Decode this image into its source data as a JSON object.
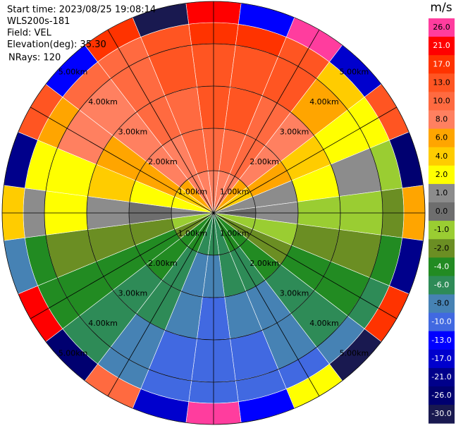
{
  "chart_data": {
    "type": "ppi",
    "header": [
      "Start time: 2023/08/25 19:08:14",
      "WLS200s-181",
      "Field: VEL",
      "Elevation(deg): 35.30",
      "NRays: 120"
    ],
    "unit": "m/s",
    "range_rings": [
      {
        "value": 1,
        "label": "1.00km"
      },
      {
        "value": 2,
        "label": "2.00km"
      },
      {
        "value": 3,
        "label": "3.00km"
      },
      {
        "value": 4,
        "label": "4.00km"
      },
      {
        "value": 5,
        "label": "5.00km"
      }
    ],
    "azimuth": [
      0,
      15,
      30,
      45,
      60,
      75,
      90,
      105,
      120,
      135,
      150,
      165,
      180,
      195,
      210,
      225,
      240,
      255,
      270,
      285,
      300,
      315,
      330,
      345
    ],
    "range_edges": [
      0,
      1,
      2,
      3,
      4,
      4.5,
      5
    ],
    "velocity": [
      [
        8,
        10,
        13,
        13,
        17,
        21
      ],
      [
        8,
        10,
        13,
        13,
        17,
        -13
      ],
      [
        8,
        10,
        10,
        13,
        13,
        26
      ],
      [
        6,
        8,
        8,
        6,
        4,
        -17
      ],
      [
        4,
        6,
        4,
        2,
        2,
        13
      ],
      [
        1,
        1,
        2,
        1,
        -1,
        -26
      ],
      [
        0,
        1,
        -1,
        -1,
        -2,
        6
      ],
      [
        -1,
        -1,
        -2,
        -2,
        -4,
        -21
      ],
      [
        -2,
        -2,
        -4,
        -4,
        -6,
        17
      ],
      [
        -4,
        -4,
        -6,
        -6,
        -8,
        -30
      ],
      [
        -4,
        -6,
        -8,
        -8,
        -10,
        2
      ],
      [
        -6,
        -6,
        -8,
        -10,
        -10,
        -13
      ],
      [
        -6,
        -8,
        -10,
        -10,
        -10,
        26
      ],
      [
        -6,
        -8,
        -8,
        -10,
        -10,
        -17
      ],
      [
        -4,
        -6,
        -6,
        -8,
        -8,
        10
      ],
      [
        -4,
        -4,
        -6,
        -6,
        -6,
        -26
      ],
      [
        -2,
        -4,
        -4,
        -4,
        -4,
        21
      ],
      [
        -1,
        -2,
        -2,
        -2,
        -4,
        -8
      ],
      [
        1,
        0,
        1,
        2,
        1,
        4
      ],
      [
        2,
        2,
        4,
        2,
        2,
        -21
      ],
      [
        4,
        6,
        6,
        8,
        6,
        13
      ],
      [
        6,
        8,
        8,
        8,
        10,
        -13
      ],
      [
        8,
        8,
        10,
        10,
        10,
        17
      ],
      [
        8,
        10,
        10,
        13,
        13,
        -30
      ]
    ],
    "colorbar": [
      {
        "value": 26,
        "label": "26.0",
        "color": "#ff3d9e"
      },
      {
        "value": 21,
        "label": "21.0",
        "color": "#ff0000"
      },
      {
        "value": 17,
        "label": "17.0",
        "color": "#ff3300"
      },
      {
        "value": 13,
        "label": "13.0",
        "color": "#ff5522"
      },
      {
        "value": 10,
        "label": "10.0",
        "color": "#ff6a40"
      },
      {
        "value": 8,
        "label": "8.0",
        "color": "#ff8060"
      },
      {
        "value": 6,
        "label": "6.0",
        "color": "#ffa500"
      },
      {
        "value": 4,
        "label": "4.0",
        "color": "#ffcc00"
      },
      {
        "value": 2,
        "label": "2.0",
        "color": "#ffff00"
      },
      {
        "value": 1,
        "label": "1.0",
        "color": "#8c8c8c"
      },
      {
        "value": 0,
        "label": "0.0",
        "color": "#6e6e6e"
      },
      {
        "value": -1,
        "label": "-1.0",
        "color": "#9acd32"
      },
      {
        "value": -2,
        "label": "-2.0",
        "color": "#6b8e23"
      },
      {
        "value": -4,
        "label": "-4.0",
        "color": "#228b22"
      },
      {
        "value": -6,
        "label": "-6.0",
        "color": "#2e8b57"
      },
      {
        "value": -8,
        "label": "-8.0",
        "color": "#4682b4"
      },
      {
        "value": -10,
        "label": "-10.0",
        "color": "#4169e1"
      },
      {
        "value": -13,
        "label": "-13.0",
        "color": "#0000ff"
      },
      {
        "value": -17,
        "label": "-17.0",
        "color": "#0000cd"
      },
      {
        "value": -21,
        "label": "-21.0",
        "color": "#00008b"
      },
      {
        "value": -26,
        "label": "-26.0",
        "color": "#000070"
      },
      {
        "value": -30,
        "label": "-30.0",
        "color": "#191950"
      }
    ]
  }
}
